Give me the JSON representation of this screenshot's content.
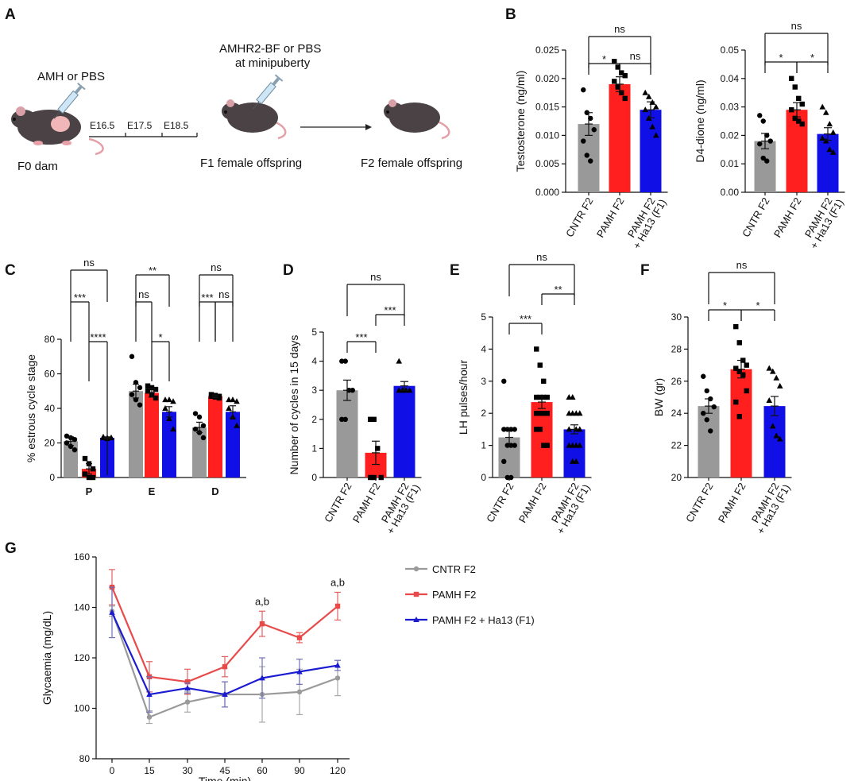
{
  "colors": {
    "ctrl": "#999999",
    "pamh": "#ff1f1f",
    "ha13": "#1010e6",
    "ctrl_line": "#9a9a9a",
    "pamh_line": "#e84a4a",
    "ha13_line": "#1a1ad0"
  },
  "panel_labels": [
    "A",
    "B",
    "C",
    "D",
    "E",
    "F",
    "G"
  ],
  "schematic": {
    "injection1": "AMH or PBS",
    "days": [
      "E16.5",
      "E17.5",
      "E18.5"
    ],
    "f0": "F0 dam",
    "injection2_line1": "AMHR2-BF or PBS",
    "injection2_line2": "at minipuberty",
    "f1": "F1 female offspring",
    "f2": "F2 female offspring"
  },
  "chart_data": [
    {
      "id": "B1",
      "type": "bar",
      "ylabel": "Testosterone (ng/ml)",
      "ylim": [
        0,
        0.025
      ],
      "yticks": [
        "0.000",
        "0.005",
        "0.010",
        "0.015",
        "0.020",
        "0.025"
      ],
      "categories": [
        [
          "CNTR F2"
        ],
        [
          "PAMH F2"
        ],
        [
          "PAMH F2",
          "+ Ha13 (F1)"
        ]
      ],
      "values": [
        0.012,
        0.019,
        0.0145
      ],
      "errors": [
        0.002,
        0.0013,
        0.0014
      ],
      "points": [
        [
          0.018,
          0.014,
          0.013,
          0.011,
          0.009,
          0.0065,
          0.0055
        ],
        [
          0.023,
          0.022,
          0.021,
          0.0205,
          0.0195,
          0.0185,
          0.0175,
          0.0165
        ],
        [
          0.0175,
          0.0168,
          0.0158,
          0.015,
          0.0145,
          0.013,
          0.0115,
          0.01
        ]
      ],
      "sig": [
        {
          "from": 0,
          "to": 2,
          "label": "ns"
        },
        {
          "from": 0,
          "to": 1,
          "label": "*"
        },
        {
          "from": 1,
          "to": 2,
          "label": "ns"
        }
      ]
    },
    {
      "id": "B2",
      "type": "bar",
      "ylabel": "D4-dione (ng/ml)",
      "ylim": [
        0,
        0.05
      ],
      "yticks": [
        "0.00",
        "0.01",
        "0.02",
        "0.03",
        "0.04",
        "0.05"
      ],
      "categories": [
        [
          "CNTR F2"
        ],
        [
          "PAMH F2"
        ],
        [
          "PAMH F2",
          "+ Ha13 (F1)"
        ]
      ],
      "values": [
        0.018,
        0.029,
        0.0205
      ],
      "errors": [
        0.0027,
        0.0025,
        0.0022
      ],
      "points": [
        [
          0.027,
          0.025,
          0.02,
          0.018,
          0.017,
          0.012,
          0.011
        ],
        [
          0.04,
          0.037,
          0.033,
          0.031,
          0.029,
          0.026,
          0.025,
          0.024
        ],
        [
          0.03,
          0.028,
          0.024,
          0.021,
          0.019,
          0.018,
          0.015,
          0.014
        ]
      ],
      "sig": [
        {
          "from": 0,
          "to": 2,
          "label": "ns"
        },
        {
          "from": 0,
          "to": 1,
          "label": "*"
        },
        {
          "from": 1,
          "to": 2,
          "label": "*"
        }
      ]
    },
    {
      "id": "C",
      "type": "grouped_bar",
      "ylabel": "% estrous cycle stage",
      "ylim": [
        0,
        80
      ],
      "yticks": [
        "0",
        "20",
        "40",
        "60",
        "80"
      ],
      "groups": [
        "P",
        "E",
        "D"
      ],
      "values": [
        [
          21,
          5,
          23
        ],
        [
          50,
          49,
          38
        ],
        [
          29,
          47,
          38
        ]
      ],
      "errors": [
        [
          2.5,
          3,
          0.5
        ],
        [
          4,
          2.5,
          3
        ],
        [
          3,
          0.8,
          3.5
        ]
      ],
      "points": [
        [
          [
            24,
            23,
            22,
            20,
            18,
            16
          ],
          [
            11,
            8,
            5,
            2,
            0,
            0
          ],
          [
            23.5,
            23,
            23,
            23,
            22.5,
            23
          ]
        ],
        [
          [
            70,
            55,
            52,
            48,
            45,
            42
          ],
          [
            53,
            52,
            51,
            50,
            48,
            46
          ],
          [
            45,
            45,
            44,
            40,
            34,
            28
          ]
        ],
        [
          [
            37,
            35,
            30,
            28,
            26,
            23
          ],
          [
            48,
            47.5,
            47,
            47,
            46.5,
            46
          ],
          [
            45,
            45,
            44,
            40,
            35,
            30
          ]
        ]
      ],
      "sig": [
        {
          "g": 0,
          "from": 0,
          "to": 2,
          "label": "ns"
        },
        {
          "g": 0,
          "from": 0,
          "to": 1,
          "label": "***"
        },
        {
          "g": 0,
          "from": 1,
          "to": 2,
          "label": "****"
        },
        {
          "g": 1,
          "from": 0,
          "to": 2,
          "label": "**"
        },
        {
          "g": 1,
          "from": 0,
          "to": 1,
          "label": "ns"
        },
        {
          "g": 1,
          "from": 1,
          "to": 2,
          "label": "*"
        },
        {
          "g": 2,
          "from": 0,
          "to": 2,
          "label": "ns"
        },
        {
          "g": 2,
          "from": 0,
          "to": 1,
          "label": "***"
        },
        {
          "g": 2,
          "from": 1,
          "to": 2,
          "label": "ns"
        }
      ]
    },
    {
      "id": "D",
      "type": "bar",
      "ylabel": "Number of cycles in 15 days",
      "ylim": [
        0,
        5
      ],
      "yticks": [
        "0",
        "1",
        "2",
        "3",
        "4",
        "5"
      ],
      "categories": [
        [
          "CNTR F2"
        ],
        [
          "PAMH F2"
        ],
        [
          "PAMH F2",
          "+ Ha13 (F1)"
        ]
      ],
      "values": [
        3.0,
        0.85,
        3.15
      ],
      "errors": [
        0.35,
        0.4,
        0.15
      ],
      "points": [
        [
          4,
          4,
          3,
          3,
          2,
          2
        ],
        [
          2,
          2,
          1,
          0,
          0,
          0
        ],
        [
          4,
          3,
          3,
          3,
          3,
          3
        ]
      ],
      "sig": [
        {
          "from": 0,
          "to": 2,
          "label": "ns"
        },
        {
          "from": 0,
          "to": 1,
          "label": "***"
        },
        {
          "from": 1,
          "to": 2,
          "label": "***"
        }
      ]
    },
    {
      "id": "E",
      "type": "bar",
      "ylabel": "LH pulses/hour",
      "ylim": [
        0,
        5
      ],
      "yticks": [
        "0",
        "1",
        "2",
        "3",
        "4",
        "5"
      ],
      "categories": [
        [
          "CNTR F2"
        ],
        [
          "PAMH F2"
        ],
        [
          "PAMH F2",
          "+ Ha13 (F1)"
        ]
      ],
      "values": [
        1.25,
        2.35,
        1.5
      ],
      "errors": [
        0.28,
        0.2,
        0.14
      ],
      "points": [
        [
          3,
          1.5,
          1.5,
          1.5,
          1.5,
          1,
          1,
          1,
          0.5,
          0,
          0
        ],
        [
          4,
          3.5,
          3,
          2.5,
          2.5,
          2.5,
          2.5,
          2,
          2,
          2,
          2,
          2,
          1.5,
          1.5,
          1,
          1
        ],
        [
          2.5,
          2.5,
          2,
          2,
          2,
          2,
          1.5,
          1.5,
          1.5,
          1,
          1,
          1,
          1,
          0.5,
          0.5
        ]
      ],
      "sig": [
        {
          "from": 0,
          "to": 2,
          "label": "ns"
        },
        {
          "from": 0,
          "to": 1,
          "label": "***"
        },
        {
          "from": 1,
          "to": 2,
          "label": "**"
        }
      ]
    },
    {
      "id": "F",
      "type": "bar",
      "ylabel": "BW (gr)",
      "ylim": [
        20,
        30
      ],
      "yticks": [
        "20",
        "22",
        "24",
        "26",
        "28",
        "30"
      ],
      "categories": [
        [
          "CNTR F2"
        ],
        [
          "PAMH F2"
        ],
        [
          "PAMH F2",
          "+ Ha13 (F1)"
        ]
      ],
      "values": [
        24.45,
        26.75,
        24.45
      ],
      "errors": [
        0.45,
        0.55,
        0.6
      ],
      "points": [
        [
          26.3,
          25.4,
          24.9,
          24.4,
          24,
          23.6,
          22.9
        ],
        [
          29.4,
          28.4,
          27.3,
          27,
          26.8,
          26.6,
          26.4,
          25.4,
          24.7,
          23.8
        ],
        [
          26.8,
          26.6,
          26.2,
          25.7,
          24.8,
          23.2,
          22.6,
          22.4
        ]
      ],
      "sig": [
        {
          "from": 0,
          "to": 2,
          "label": "ns"
        },
        {
          "from": 0,
          "to": 1,
          "label": "*"
        },
        {
          "from": 1,
          "to": 2,
          "label": "*"
        }
      ]
    },
    {
      "id": "G",
      "type": "line",
      "ylabel": "Glycaemia (mg/dL)",
      "xlabel": "Time (min)",
      "ylim": [
        80,
        160
      ],
      "yticks": [
        "80",
        "100",
        "120",
        "140",
        "160"
      ],
      "x": [
        "0",
        "15",
        "30",
        "45",
        "60",
        "90",
        "120"
      ],
      "series": [
        {
          "name": "CNTR F2",
          "values": [
            138.5,
            96.5,
            102.5,
            105.5,
            105.5,
            106.5,
            112
          ],
          "errors": [
            2,
            2.5,
            4,
            5,
            11,
            9,
            7
          ]
        },
        {
          "name": "PAMH F2",
          "values": [
            148,
            112.5,
            110.5,
            116.5,
            133.5,
            128,
            140.5
          ],
          "errors": [
            7,
            6,
            5,
            4,
            5,
            2,
            5.5
          ]
        },
        {
          "name": "PAMH F2 + Ha13 (F1)",
          "values": [
            138,
            105.5,
            108,
            105.5,
            112,
            114.5,
            117
          ],
          "errors": [
            10,
            7,
            2,
            5,
            8,
            5,
            2
          ]
        }
      ],
      "annotations": [
        {
          "x_index": 4,
          "label": "a,b"
        },
        {
          "x_index": 6,
          "label": "a,b"
        }
      ]
    }
  ]
}
